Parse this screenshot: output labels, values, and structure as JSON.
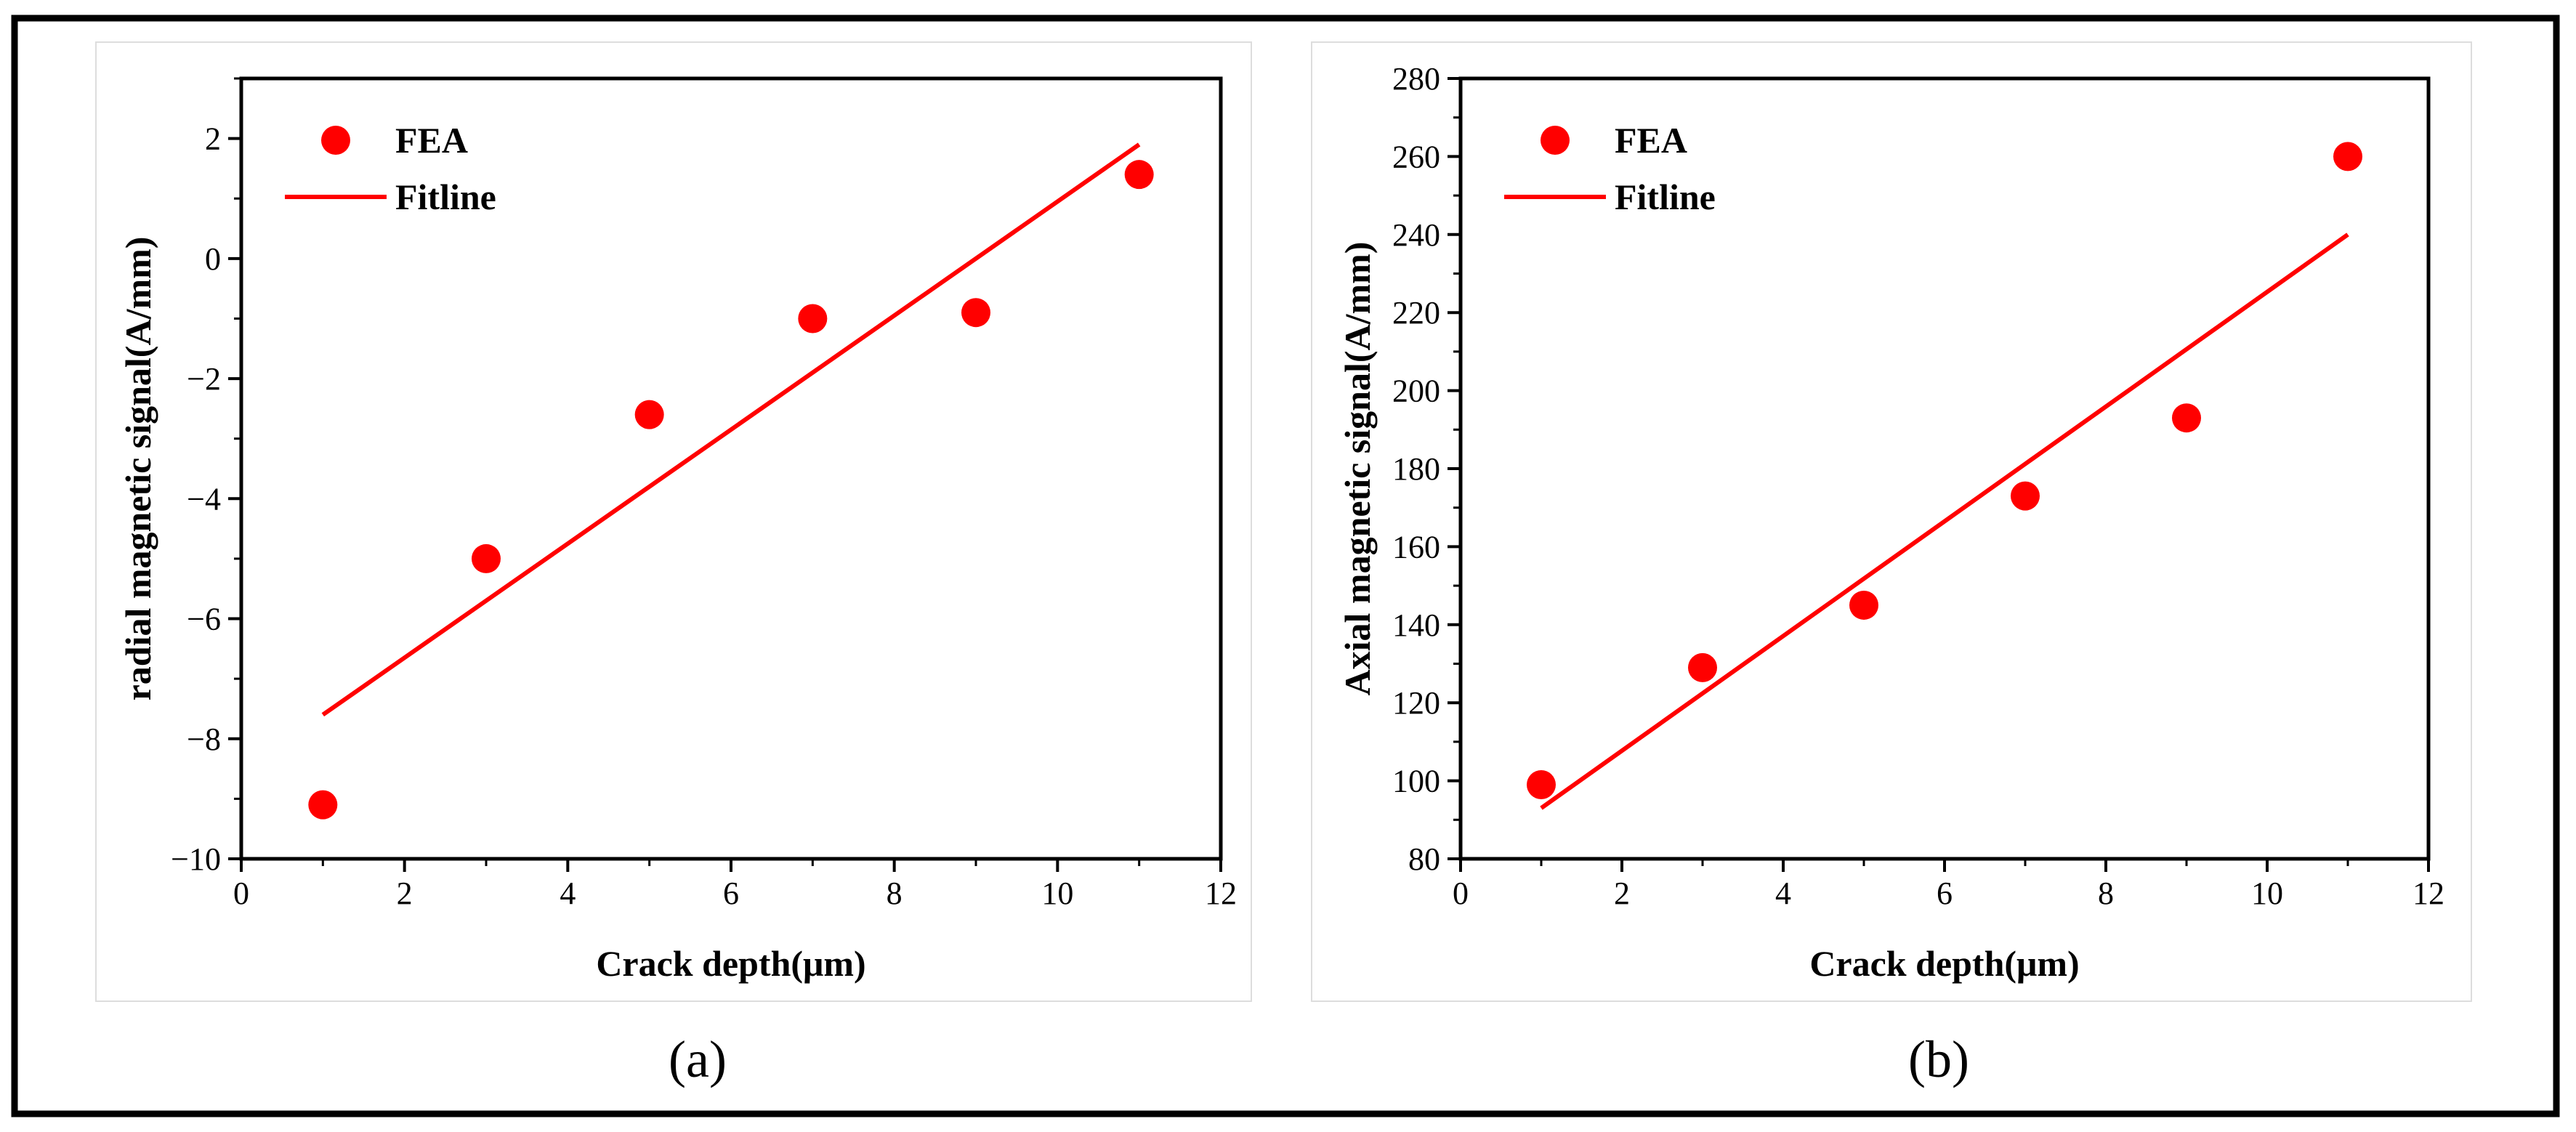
{
  "chart_data": [
    {
      "type": "scatter",
      "panel_label": "(a)",
      "xlabel": "Crack depth(μm)",
      "ylabel": "radial magnetic signal(A/mm)",
      "xlim": [
        0,
        12
      ],
      "ylim": [
        -10,
        3
      ],
      "xticks": [
        0,
        2,
        4,
        6,
        8,
        10,
        12
      ],
      "yticks": [
        -10,
        -8,
        -6,
        -4,
        -2,
        0,
        2
      ],
      "legend_position": "top-left",
      "grid": false,
      "series": [
        {
          "name": "FEA",
          "kind": "points",
          "color": "#ff0000",
          "x": [
            1,
            3,
            5,
            7,
            9,
            11
          ],
          "y": [
            -9.1,
            -5.0,
            -2.6,
            -1.0,
            -0.9,
            1.4
          ]
        },
        {
          "name": "Fitline",
          "kind": "line",
          "color": "#ff0000",
          "x": [
            1,
            11
          ],
          "y": [
            -7.6,
            1.9
          ]
        }
      ]
    },
    {
      "type": "scatter",
      "panel_label": "(b)",
      "xlabel": "Crack depth(μm)",
      "ylabel": "Axial magnetic signal(A/mm)",
      "xlim": [
        0,
        12
      ],
      "ylim": [
        80,
        280
      ],
      "xticks": [
        0,
        2,
        4,
        6,
        8,
        10,
        12
      ],
      "yticks": [
        80,
        100,
        120,
        140,
        160,
        180,
        200,
        220,
        240,
        260,
        280
      ],
      "legend_position": "top-left",
      "grid": false,
      "series": [
        {
          "name": "FEA",
          "kind": "points",
          "color": "#ff0000",
          "x": [
            1,
            3,
            5,
            7,
            9,
            11
          ],
          "y": [
            99,
            129,
            145,
            173,
            193,
            260
          ]
        },
        {
          "name": "Fitline",
          "kind": "line",
          "color": "#ff0000",
          "x": [
            1,
            11
          ],
          "y": [
            93,
            240
          ]
        }
      ]
    }
  ]
}
